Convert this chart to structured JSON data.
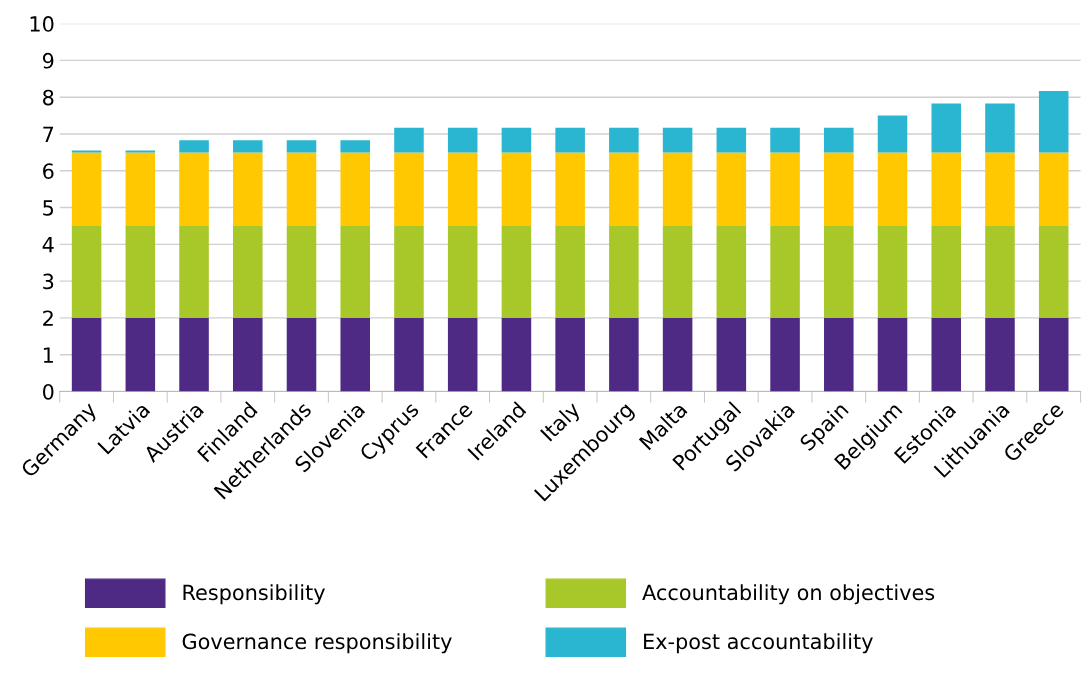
{
  "chart_data": {
    "type": "bar",
    "stacked": true,
    "categories": [
      "Germany",
      "Latvia",
      "Austria",
      "Finland",
      "Netherlands",
      "Slovenia",
      "Cyprus",
      "France",
      "Ireland",
      "Italy",
      "Luxembourg",
      "Malta",
      "Portugal",
      "Slovakia",
      "Spain",
      "Belgium",
      "Estonia",
      "Lithuania",
      "Greece"
    ],
    "series": [
      {
        "name": "Responsibility",
        "color": "#4f2a84",
        "values": [
          2,
          2,
          2,
          2,
          2,
          2,
          2,
          2,
          2,
          2,
          2,
          2,
          2,
          2,
          2,
          2,
          2,
          2,
          2
        ]
      },
      {
        "name": "Accountability on objectives",
        "color": "#a8c82a",
        "values": [
          2.5,
          2.5,
          2.5,
          2.5,
          2.5,
          2.5,
          2.5,
          2.5,
          2.5,
          2.5,
          2.5,
          2.5,
          2.5,
          2.5,
          2.5,
          2.5,
          2.5,
          2.5,
          2.5
        ]
      },
      {
        "name": "Governance responsibility",
        "color": "#ffc800",
        "values": [
          2,
          2,
          2,
          2,
          2,
          2,
          2,
          2,
          2,
          2,
          2,
          2,
          2,
          2,
          2,
          2,
          2,
          2,
          2
        ]
      },
      {
        "name": "Ex-post accountability",
        "color": "#2ab5d0",
        "values": [
          0.05,
          0.05,
          0.33,
          0.33,
          0.33,
          0.33,
          0.67,
          0.67,
          0.67,
          0.67,
          0.67,
          0.67,
          0.67,
          0.67,
          0.67,
          1.0,
          1.33,
          1.33,
          1.67
        ]
      }
    ],
    "ylim": [
      0,
      10
    ],
    "yticks": [
      0,
      1,
      2,
      3,
      4,
      5,
      6,
      7,
      8,
      9,
      10
    ],
    "grid": "y",
    "legend": "bottom"
  }
}
